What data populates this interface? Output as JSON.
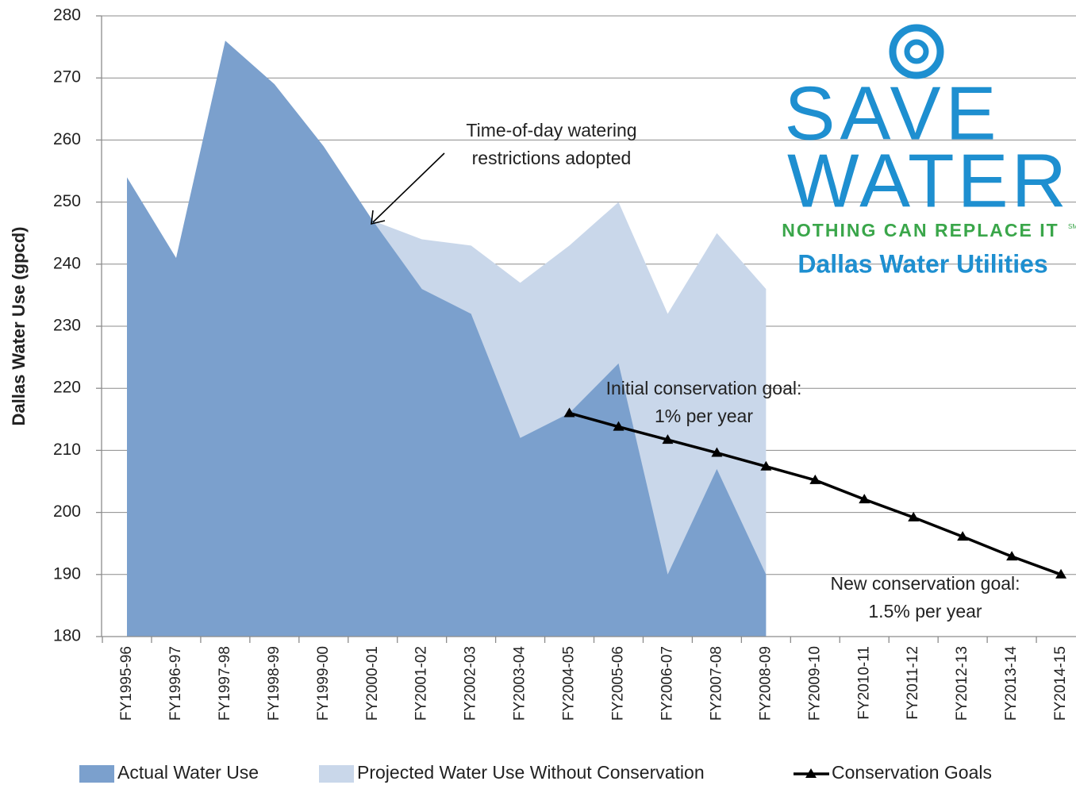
{
  "chart_data": {
    "type": "area",
    "ylabel": "Dallas Water Use (gpcd)",
    "categories": [
      "FY1995-96",
      "FY1996-97",
      "FY1997-98",
      "FY1998-99",
      "FY1999-00",
      "FY2000-01",
      "FY2001-02",
      "FY2002-03",
      "FY2003-04",
      "FY2004-05",
      "FY2005-06",
      "FY2006-07",
      "FY2007-08",
      "FY2008-09",
      "FY2009-10",
      "FY2010-11",
      "FY2011-12",
      "FY2012-13",
      "FY2013-14",
      "FY2014-15"
    ],
    "series": [
      {
        "name": "Actual Water Use",
        "kind": "area",
        "color": "#7ba0cd",
        "values": [
          254,
          241,
          276,
          269,
          259,
          247,
          236,
          232,
          212,
          216,
          224,
          190,
          207,
          190,
          null,
          null,
          null,
          null,
          null,
          null
        ]
      },
      {
        "name": "Projected Water Use Without Conservation",
        "kind": "area",
        "color": "#c9d7ea",
        "values": [
          null,
          null,
          null,
          null,
          null,
          247,
          244,
          243,
          237,
          243,
          250,
          232,
          245,
          236,
          null,
          null,
          null,
          null,
          null,
          null
        ]
      },
      {
        "name": "Conservation Goals",
        "kind": "line",
        "color": "#000000",
        "values": [
          null,
          null,
          null,
          null,
          null,
          null,
          null,
          null,
          null,
          216,
          213.8,
          211.7,
          209.6,
          207.4,
          205.2,
          202.1,
          199.2,
          196.1,
          192.9,
          190
        ]
      }
    ],
    "ylim": [
      180,
      280
    ],
    "yticks": [
      180,
      190,
      200,
      210,
      220,
      230,
      240,
      250,
      260,
      270,
      280
    ],
    "grid": true,
    "legend": "bottom",
    "annotations": [
      {
        "lines": [
          "Time-of-day watering",
          "restrictions adopted"
        ]
      },
      {
        "lines": [
          "Initial conservation goal:",
          "1% per year"
        ]
      },
      {
        "lines": [
          "New conservation goal:",
          "1.5% per year"
        ]
      }
    ],
    "logo": {
      "line1": "SAVE",
      "line2": "WATER",
      "tagline": "NOTHING CAN REPLACE IT",
      "mark": "SM",
      "org": "Dallas Water Utilities"
    }
  }
}
